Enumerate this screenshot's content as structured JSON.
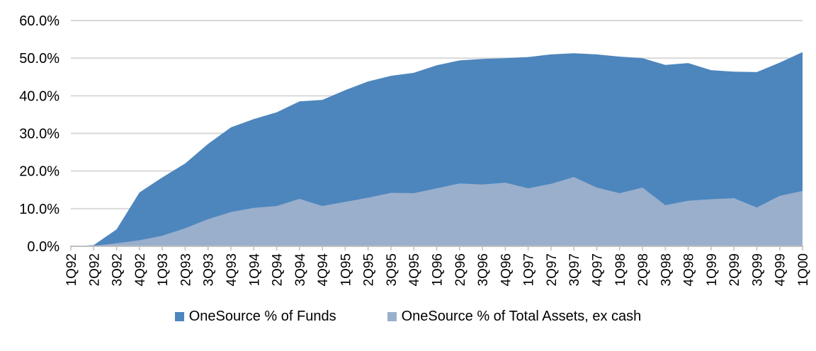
{
  "chart_data": {
    "type": "area",
    "title": "",
    "xlabel": "",
    "ylabel": "",
    "categories": [
      "1Q92",
      "2Q92",
      "3Q92",
      "4Q92",
      "1Q93",
      "2Q93",
      "3Q93",
      "4Q93",
      "1Q94",
      "2Q94",
      "3Q94",
      "4Q94",
      "1Q95",
      "2Q95",
      "3Q95",
      "4Q95",
      "1Q96",
      "2Q96",
      "3Q96",
      "4Q96",
      "1Q97",
      "2Q97",
      "3Q97",
      "4Q97",
      "1Q98",
      "2Q98",
      "3Q98",
      "4Q98",
      "1Q99",
      "2Q99",
      "3Q99",
      "4Q99",
      "1Q00"
    ],
    "series": [
      {
        "name": "OneSource % of Funds",
        "color": "#4d86bd",
        "values": [
          0.0,
          0.3,
          4.5,
          14.3,
          18.3,
          22.0,
          27.2,
          31.6,
          33.8,
          35.6,
          38.5,
          38.9,
          41.5,
          43.8,
          45.3,
          46.1,
          48.1,
          49.4,
          49.8,
          50.0,
          50.3,
          51.0,
          51.3,
          51.0,
          50.4,
          50.0,
          48.2,
          48.7,
          46.8,
          46.4,
          46.3,
          48.8,
          51.6
        ]
      },
      {
        "name": "OneSource % of Total Assets, ex cash",
        "color": "#9aafcc",
        "values": [
          0.0,
          0.1,
          0.8,
          1.6,
          2.8,
          4.8,
          7.2,
          9.1,
          10.2,
          10.7,
          12.6,
          10.7,
          11.8,
          12.9,
          14.2,
          14.1,
          15.4,
          16.7,
          16.4,
          16.9,
          15.4,
          16.6,
          18.4,
          15.6,
          14.1,
          15.6,
          10.9,
          12.1,
          12.5,
          12.8,
          10.3,
          13.4,
          14.7
        ]
      }
    ],
    "ylim": [
      0,
      60
    ],
    "y_tick_step": 10,
    "y_tick_labels": [
      "0.0%",
      "10.0%",
      "20.0%",
      "30.0%",
      "40.0%",
      "50.0%",
      "60.0%"
    ],
    "grid": "horizontal",
    "legend_position": "bottom",
    "series_mode": "overlapped"
  },
  "style": {
    "gridline_color": "#d9d9d9",
    "axis_color": "#bfbfbf",
    "text_color": "#000000",
    "background": "#ffffff"
  }
}
